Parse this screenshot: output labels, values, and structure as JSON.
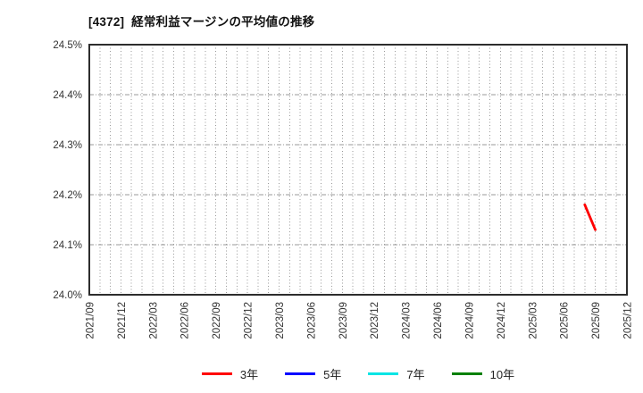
{
  "chart_data": {
    "type": "line",
    "title": "[4372]  経常利益マージンの平均値の推移",
    "xlabel": "",
    "ylabel": "",
    "ylim": [
      24.0,
      24.5
    ],
    "y_ticks": [
      24.0,
      24.1,
      24.2,
      24.3,
      24.4,
      24.5
    ],
    "y_tick_suffix": "%",
    "x_start": "2021/09",
    "x_end": "2025/12",
    "x_gridline_interval_months": 1,
    "x_tick_labels": [
      "2021/09",
      "2021/12",
      "2022/03",
      "2022/06",
      "2022/09",
      "2022/12",
      "2023/03",
      "2023/06",
      "2023/09",
      "2023/12",
      "2024/03",
      "2024/06",
      "2024/09",
      "2024/12",
      "2025/03",
      "2025/06",
      "2025/09",
      "2025/12"
    ],
    "grid": true,
    "legend_position": "bottom-center",
    "series": [
      {
        "name": "3年",
        "color": "#ff0000",
        "points": [
          {
            "x": "2025/08",
            "y": 24.18
          },
          {
            "x": "2025/09",
            "y": 24.13
          }
        ]
      },
      {
        "name": "5年",
        "color": "#0000ff",
        "points": []
      },
      {
        "name": "7年",
        "color": "#00e5e5",
        "points": []
      },
      {
        "name": "10年",
        "color": "#008000",
        "points": []
      }
    ]
  },
  "colors": {
    "plot_border": "#2d2d2d",
    "gridline": "#999999",
    "tick_label": "#333333",
    "title_text": "#111111",
    "background": "#ffffff"
  }
}
